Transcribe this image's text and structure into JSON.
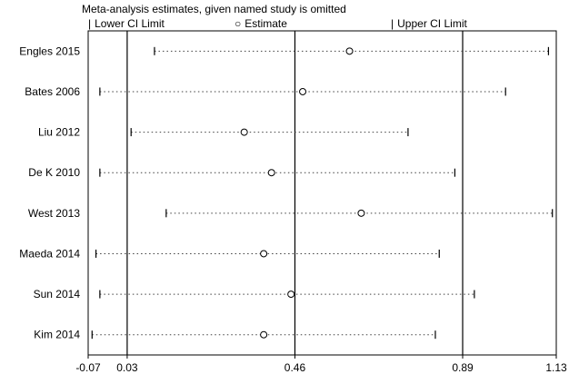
{
  "chart_data": {
    "type": "forest",
    "title": "Meta-analysis estimates, given named study is omitted",
    "legend": [
      {
        "symbol": "|",
        "label": "Lower CI Limit"
      },
      {
        "symbol": "○",
        "label": "Estimate"
      },
      {
        "symbol": "|",
        "label": "Upper CI Limit"
      }
    ],
    "xlim": [
      -0.07,
      1.13
    ],
    "x_ticks": [
      -0.07,
      0.03,
      0.46,
      0.89,
      1.13
    ],
    "x_tick_labels": [
      "-0.07",
      "0.03",
      "0.46",
      "0.89",
      "1.13"
    ],
    "ref_lines": [
      0.03,
      0.46,
      0.89
    ],
    "grid": false,
    "legend_position": "top",
    "studies": [
      {
        "label": "Engles 2015",
        "lower": 0.1,
        "estimate": 0.6,
        "upper": 1.11
      },
      {
        "label": "Bates 2006",
        "lower": -0.04,
        "estimate": 0.48,
        "upper": 1.0
      },
      {
        "label": "Liu 2012",
        "lower": 0.04,
        "estimate": 0.33,
        "upper": 0.75
      },
      {
        "label": "De K 2010",
        "lower": -0.04,
        "estimate": 0.4,
        "upper": 0.87
      },
      {
        "label": "West 2013",
        "lower": 0.13,
        "estimate": 0.63,
        "upper": 1.12
      },
      {
        "label": "Maeda 2014",
        "lower": -0.05,
        "estimate": 0.38,
        "upper": 0.83
      },
      {
        "label": "Sun 2014",
        "lower": -0.04,
        "estimate": 0.45,
        "upper": 0.92
      },
      {
        "label": "Kim 2014",
        "lower": -0.06,
        "estimate": 0.38,
        "upper": 0.82
      }
    ],
    "colors": {
      "line": "#000000",
      "dotted": "#404040",
      "marker_fill": "#ffffff",
      "background": "#ffffff"
    }
  }
}
